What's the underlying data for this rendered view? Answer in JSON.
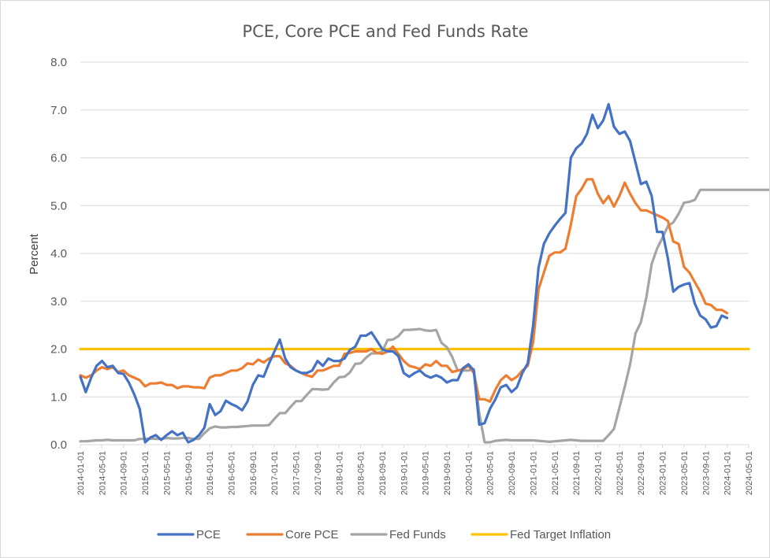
{
  "chart_data": {
    "type": "line",
    "title": "PCE, Core PCE and Fed Funds Rate",
    "ylabel": "Percent",
    "xlabel": "",
    "ylim": [
      0,
      8
    ],
    "y_ticks": [
      "0.0",
      "1.0",
      "2.0",
      "3.0",
      "4.0",
      "5.0",
      "6.0",
      "7.0",
      "8.0"
    ],
    "grid": "horizontal",
    "legend_position": "bottom",
    "x_start": "2014-01",
    "x_ticks": [
      "2014-01-01",
      "2014-05-01",
      "2014-09-01",
      "2015-01-01",
      "2015-05-01",
      "2015-09-01",
      "2016-01-01",
      "2016-05-01",
      "2016-09-01",
      "2017-01-01",
      "2017-05-01",
      "2017-09-01",
      "2018-01-01",
      "2018-05-01",
      "2018-09-01",
      "2019-01-01",
      "2019-05-01",
      "2019-09-01",
      "2020-01-01",
      "2020-05-01",
      "2020-09-01",
      "2021-01-01",
      "2021-05-01",
      "2021-09-01",
      "2022-01-01",
      "2022-05-01",
      "2022-09-01",
      "2023-01-01",
      "2023-05-01",
      "2023-09-01",
      "2024-01-01",
      "2024-05-01"
    ],
    "series": [
      {
        "name": "PCE",
        "color": "#4472C4",
        "values": [
          1.42,
          1.1,
          1.4,
          1.65,
          1.75,
          1.62,
          1.65,
          1.5,
          1.48,
          1.3,
          1.05,
          0.75,
          0.05,
          0.15,
          0.2,
          0.1,
          0.2,
          0.28,
          0.2,
          0.25,
          0.05,
          0.1,
          0.2,
          0.35,
          0.85,
          0.62,
          0.7,
          0.92,
          0.85,
          0.8,
          0.72,
          0.9,
          1.25,
          1.45,
          1.42,
          1.7,
          1.95,
          2.2,
          1.8,
          1.62,
          1.55,
          1.5,
          1.5,
          1.55,
          1.75,
          1.65,
          1.8,
          1.75,
          1.75,
          1.8,
          1.98,
          2.05,
          2.28,
          2.28,
          2.35,
          2.18,
          2.0,
          1.95,
          1.95,
          1.85,
          1.5,
          1.42,
          1.5,
          1.55,
          1.45,
          1.4,
          1.45,
          1.4,
          1.3,
          1.35,
          1.35,
          1.6,
          1.68,
          1.55,
          0.42,
          0.45,
          0.75,
          0.95,
          1.2,
          1.25,
          1.1,
          1.2,
          1.5,
          1.7,
          2.5,
          3.7,
          4.2,
          4.42,
          4.58,
          4.72,
          4.85,
          6.0,
          6.2,
          6.3,
          6.5,
          6.9,
          6.62,
          6.78,
          7.12,
          6.65,
          6.5,
          6.55,
          6.35,
          5.9,
          5.45,
          5.5,
          5.2,
          4.45,
          4.45,
          3.9,
          3.2,
          3.3,
          3.35,
          3.38,
          2.95,
          2.7,
          2.62,
          2.45,
          2.48,
          2.7,
          2.65
        ]
      },
      {
        "name": "Core PCE",
        "color": "#ED7D31",
        "values": [
          1.45,
          1.4,
          1.45,
          1.55,
          1.62,
          1.58,
          1.62,
          1.52,
          1.55,
          1.45,
          1.4,
          1.35,
          1.22,
          1.28,
          1.28,
          1.3,
          1.25,
          1.25,
          1.18,
          1.22,
          1.22,
          1.2,
          1.2,
          1.18,
          1.4,
          1.45,
          1.45,
          1.5,
          1.55,
          1.55,
          1.6,
          1.7,
          1.68,
          1.78,
          1.72,
          1.8,
          1.85,
          1.85,
          1.7,
          1.65,
          1.55,
          1.5,
          1.45,
          1.42,
          1.55,
          1.55,
          1.6,
          1.65,
          1.65,
          1.9,
          1.92,
          1.95,
          1.95,
          1.95,
          2.0,
          1.92,
          1.9,
          1.95,
          2.05,
          1.9,
          1.75,
          1.65,
          1.62,
          1.58,
          1.68,
          1.65,
          1.75,
          1.65,
          1.65,
          1.52,
          1.55,
          1.58,
          1.65,
          1.5,
          0.95,
          0.95,
          0.9,
          1.15,
          1.35,
          1.45,
          1.35,
          1.42,
          1.55,
          1.65,
          2.15,
          3.25,
          3.6,
          3.95,
          4.02,
          4.02,
          4.1,
          4.6,
          5.2,
          5.35,
          5.55,
          5.55,
          5.25,
          5.05,
          5.2,
          4.98,
          5.2,
          5.48,
          5.25,
          5.05,
          4.9,
          4.9,
          4.85,
          4.8,
          4.75,
          4.68,
          4.25,
          4.2,
          3.72,
          3.6,
          3.4,
          3.2,
          2.95,
          2.92,
          2.82,
          2.82,
          2.75
        ]
      },
      {
        "name": "Fed Funds",
        "color": "#A5A5A5",
        "values": [
          0.07,
          0.07,
          0.08,
          0.09,
          0.09,
          0.1,
          0.09,
          0.09,
          0.09,
          0.09,
          0.09,
          0.12,
          0.12,
          0.13,
          0.12,
          0.12,
          0.14,
          0.13,
          0.13,
          0.14,
          0.14,
          0.12,
          0.12,
          0.24,
          0.34,
          0.38,
          0.36,
          0.36,
          0.37,
          0.37,
          0.38,
          0.39,
          0.4,
          0.4,
          0.4,
          0.41,
          0.54,
          0.66,
          0.66,
          0.79,
          0.91,
          0.91,
          1.04,
          1.16,
          1.16,
          1.15,
          1.16,
          1.3,
          1.41,
          1.42,
          1.51,
          1.69,
          1.7,
          1.82,
          1.91,
          1.91,
          1.95,
          2.19,
          2.2,
          2.27,
          2.4,
          2.4,
          2.41,
          2.42,
          2.39,
          2.38,
          2.4,
          2.13,
          2.04,
          1.83,
          1.55,
          1.55,
          1.55,
          1.58,
          0.65,
          0.05,
          0.05,
          0.08,
          0.09,
          0.1,
          0.09,
          0.09,
          0.09,
          0.09,
          0.09,
          0.08,
          0.07,
          0.06,
          0.07,
          0.08,
          0.09,
          0.1,
          0.09,
          0.08,
          0.08,
          0.08,
          0.08,
          0.08,
          0.2,
          0.33,
          0.77,
          1.21,
          1.68,
          2.33,
          2.56,
          3.08,
          3.78,
          4.1,
          4.33,
          4.57,
          4.65,
          4.83,
          5.06,
          5.08,
          5.12,
          5.33,
          5.33,
          5.33,
          5.33,
          5.33,
          5.33,
          5.33,
          5.33,
          5.33,
          5.33,
          5.33,
          5.33,
          5.33,
          5.33,
          5.33,
          5.33
        ]
      },
      {
        "name": "Fed Target Inflation",
        "color": "#FFC000",
        "constant": 2.0
      }
    ]
  }
}
